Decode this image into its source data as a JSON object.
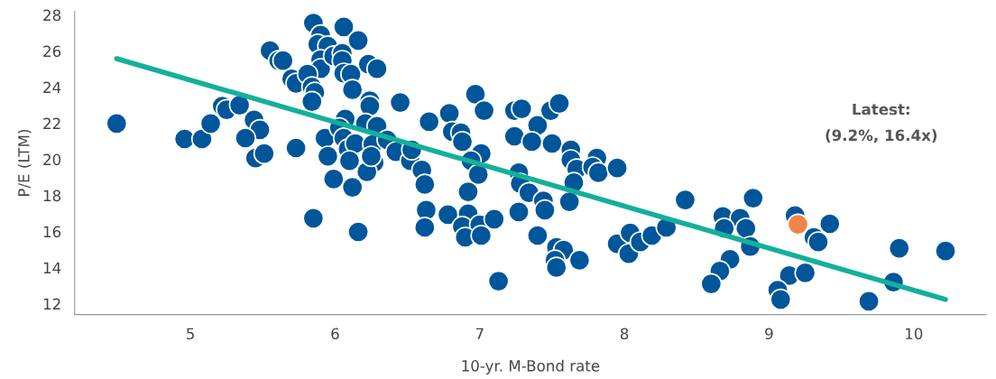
{
  "chart_data": {
    "type": "scatter",
    "xlabel": "10-yr. M-Bond rate",
    "ylabel": "P/E (LTM)",
    "xlim": [
      4.2,
      10.5
    ],
    "xticks": [
      5,
      6,
      7,
      8,
      9,
      10
    ],
    "ylim": [
      11.4,
      28.2
    ],
    "yticks": [
      12,
      14,
      16,
      18,
      20,
      22,
      24,
      26,
      28
    ],
    "grid": false,
    "legend": false,
    "marker": "circle",
    "series": [
      {
        "color": "#00569a",
        "x": [
          5.85,
          5.9,
          5.88,
          5.95,
          5.9,
          5.9,
          5.99,
          6.06,
          6.16,
          6.05,
          6.05,
          6.06,
          6.11,
          6.12,
          6.23,
          6.29,
          5.55,
          5.61,
          5.64,
          5.7,
          5.73,
          5.81,
          5.84,
          5.86,
          5.84,
          6.24,
          6.24,
          4.49,
          4.96,
          5.08,
          5.14,
          5.22,
          5.25,
          5.34,
          5.44,
          5.48,
          5.38,
          5.45,
          5.51,
          5.73,
          5.85,
          6.16,
          5.93,
          5.95,
          5.99,
          6.12,
          6.07,
          6.03,
          6.06,
          6.09,
          6.14,
          6.1,
          6.21,
          6.29,
          6.26,
          6.27,
          6.22,
          6.25,
          6.45,
          6.65,
          6.36,
          6.42,
          6.52,
          6.53,
          6.6,
          6.62,
          6.63,
          6.62,
          6.79,
          6.81,
          6.87,
          6.88,
          6.97,
          7.03,
          7.01,
          6.94,
          6.99,
          6.92,
          6.78,
          6.92,
          6.88,
          7.0,
          6.9,
          7.01,
          7.1,
          7.13,
          7.24,
          7.29,
          7.24,
          7.4,
          7.36,
          7.5,
          7.49,
          7.55,
          7.27,
          7.28,
          7.34,
          7.27,
          7.44,
          7.45,
          7.4,
          7.63,
          7.63,
          7.67,
          7.65,
          7.62,
          7.53,
          7.58,
          7.52,
          7.53,
          7.69,
          7.81,
          7.78,
          7.82,
          7.95,
          7.95,
          8.04,
          8.03,
          8.11,
          8.19,
          8.29,
          8.42,
          8.89,
          8.68,
          8.8,
          8.69,
          8.84,
          8.87,
          8.73,
          8.66,
          8.6,
          9.18,
          9.31,
          9.34,
          9.42,
          9.14,
          9.25,
          9.06,
          9.08,
          9.69,
          9.9,
          10.22,
          9.86
        ],
        "values": [
          27.55,
          26.89,
          26.38,
          26.28,
          25.53,
          25.02,
          25.73,
          27.34,
          26.59,
          25.88,
          25.47,
          24.77,
          24.72,
          23.86,
          25.27,
          25.02,
          26.03,
          25.47,
          25.47,
          24.46,
          24.21,
          24.72,
          24.01,
          23.71,
          23.2,
          23.25,
          22.95,
          21.99,
          21.13,
          21.13,
          21.99,
          22.95,
          22.75,
          23.0,
          22.19,
          21.64,
          21.18,
          20.07,
          20.32,
          20.63,
          16.74,
          15.98,
          21.18,
          20.17,
          18.91,
          18.45,
          22.24,
          21.74,
          21.18,
          20.58,
          20.88,
          19.92,
          21.99,
          21.84,
          20.83,
          19.82,
          19.31,
          20.17,
          23.15,
          22.09,
          21.08,
          20.42,
          19.92,
          20.53,
          19.41,
          18.61,
          17.19,
          16.23,
          22.55,
          21.54,
          21.48,
          20.98,
          23.61,
          22.7,
          20.32,
          19.92,
          19.16,
          18.2,
          16.94,
          16.99,
          16.28,
          16.38,
          15.68,
          15.78,
          16.69,
          13.25,
          22.7,
          22.8,
          21.28,
          21.89,
          20.98,
          20.88,
          22.7,
          23.1,
          19.26,
          18.66,
          18.15,
          17.09,
          17.7,
          17.19,
          15.78,
          20.53,
          19.97,
          19.46,
          18.71,
          17.65,
          15.12,
          14.97,
          14.41,
          14.01,
          14.41,
          20.07,
          19.57,
          19.26,
          19.52,
          15.32,
          15.93,
          14.77,
          15.42,
          15.78,
          16.23,
          17.75,
          17.85,
          16.84,
          16.74,
          16.18,
          16.18,
          15.17,
          14.46,
          13.81,
          13.1,
          16.89,
          15.68,
          15.42,
          16.43,
          13.56,
          13.71,
          12.75,
          12.24,
          12.14,
          15.07,
          14.92,
          13.2
        ]
      },
      {
        "type": "line",
        "marker": "none",
        "color": "#14b09a",
        "x": [
          4.49,
          10.22
        ],
        "values": [
          25.58,
          12.24
        ]
      },
      {
        "type": "scatter",
        "color": "#f0854a",
        "x": [
          9.2
        ],
        "values": [
          16.4
        ]
      }
    ],
    "annotations": [
      "Latest:\n(9.2%, 16.4x)"
    ]
  }
}
